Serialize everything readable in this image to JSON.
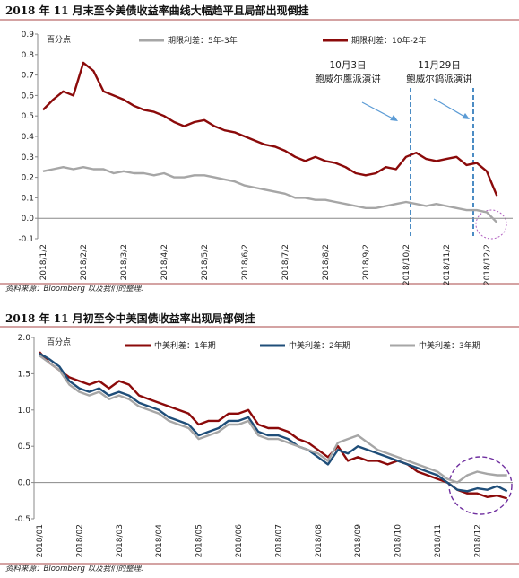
{
  "chart_data": [
    {
      "type": "line",
      "title": "2018 年 11 月末至今美债收益率曲线大幅趋平且局部出现倒挂",
      "y_unit": "百分点",
      "categories": [
        "2018/1/2",
        null,
        null,
        null,
        "2018/2/2",
        null,
        null,
        null,
        "2018/3/2",
        null,
        null,
        null,
        "2018/4/2",
        null,
        null,
        null,
        "2018/5/2",
        null,
        null,
        null,
        "2018/6/2",
        null,
        null,
        null,
        "2018/7/2",
        null,
        null,
        null,
        "2018/8/2",
        null,
        null,
        null,
        "2018/9/2",
        null,
        null,
        null,
        "2018/10/2",
        null,
        null,
        null,
        "2018/11/2",
        null,
        null,
        null,
        "2018/12/2",
        null
      ],
      "series": [
        {
          "name": "期限利差：5年-3年",
          "color": "#a6a6a6",
          "values": [
            0.23,
            0.24,
            0.25,
            0.24,
            0.25,
            0.24,
            0.24,
            0.22,
            0.23,
            0.22,
            0.22,
            0.21,
            0.22,
            0.2,
            0.2,
            0.21,
            0.21,
            0.2,
            0.19,
            0.18,
            0.16,
            0.15,
            0.14,
            0.13,
            0.12,
            0.1,
            0.1,
            0.09,
            0.09,
            0.08,
            0.07,
            0.06,
            0.05,
            0.05,
            0.06,
            0.07,
            0.08,
            0.07,
            0.06,
            0.07,
            0.06,
            0.05,
            0.04,
            0.04,
            0.03,
            -0.02
          ]
        },
        {
          "name": "期限利差：10年-2年",
          "color": "#8b0a0a",
          "values": [
            0.53,
            0.58,
            0.62,
            0.6,
            0.76,
            0.72,
            0.62,
            0.6,
            0.58,
            0.55,
            0.53,
            0.52,
            0.5,
            0.47,
            0.45,
            0.47,
            0.48,
            0.45,
            0.43,
            0.42,
            0.4,
            0.38,
            0.36,
            0.35,
            0.33,
            0.3,
            0.28,
            0.3,
            0.28,
            0.27,
            0.25,
            0.22,
            0.21,
            0.22,
            0.25,
            0.24,
            0.3,
            0.32,
            0.29,
            0.28,
            0.29,
            0.3,
            0.26,
            0.27,
            0.23,
            0.11
          ]
        }
      ],
      "ylim": [
        -0.1,
        0.9
      ],
      "yticks": [
        0.9,
        0.8,
        0.7,
        0.6,
        0.5,
        0.4,
        0.3,
        0.2,
        0.1,
        {
          "value": 0,
          "label": "0.0"
        },
        -0.1
      ],
      "annotations": [
        {
          "text": "10月3日"
        },
        {
          "text": "鲍威尔鹰派演讲"
        },
        {
          "text": "11月29日"
        },
        {
          "text": "鲍威尔鸽派演讲"
        }
      ],
      "source": "资料来源：Bloomberg 以及我们的整理."
    },
    {
      "type": "line",
      "title": "2018 年 11 月初至今中美国债收益率出现局部倒挂",
      "y_unit": "百分点",
      "categories": [
        "2018/01",
        null,
        null,
        null,
        "2018/02",
        null,
        null,
        null,
        "2018/03",
        null,
        null,
        null,
        "2018/04",
        null,
        null,
        null,
        "2018/05",
        null,
        null,
        null,
        "2018/06",
        null,
        null,
        null,
        "2018/07",
        null,
        null,
        null,
        "2018/08",
        null,
        null,
        null,
        "2018/09",
        null,
        null,
        null,
        "2018/10",
        null,
        null,
        null,
        "2018/11",
        null,
        null,
        null,
        "2018/12",
        null,
        null,
        null
      ],
      "series": [
        {
          "name": "中美利差：1年期",
          "color": "#8b0a0a",
          "values": [
            1.8,
            1.65,
            1.55,
            1.45,
            1.4,
            1.35,
            1.4,
            1.3,
            1.4,
            1.35,
            1.2,
            1.15,
            1.1,
            1.05,
            1.0,
            0.95,
            0.8,
            0.85,
            0.85,
            0.95,
            0.95,
            1.0,
            0.8,
            0.75,
            0.75,
            0.7,
            0.6,
            0.55,
            0.45,
            0.35,
            0.5,
            0.3,
            0.35,
            0.3,
            0.3,
            0.25,
            0.3,
            0.25,
            0.15,
            0.1,
            0.05,
            0.0,
            -0.1,
            -0.15,
            -0.15,
            -0.2,
            -0.18,
            -0.22
          ]
        },
        {
          "name": "中美利差：2年期",
          "color": "#1f4e79",
          "values": [
            1.78,
            1.7,
            1.6,
            1.4,
            1.3,
            1.25,
            1.3,
            1.2,
            1.25,
            1.2,
            1.1,
            1.05,
            1.0,
            0.9,
            0.85,
            0.8,
            0.65,
            0.7,
            0.75,
            0.85,
            0.85,
            0.9,
            0.7,
            0.65,
            0.65,
            0.6,
            0.5,
            0.45,
            0.35,
            0.25,
            0.45,
            0.4,
            0.5,
            0.45,
            0.4,
            0.35,
            0.3,
            0.25,
            0.2,
            0.15,
            0.1,
            0.0,
            -0.1,
            -0.12,
            -0.08,
            -0.1,
            -0.05,
            -0.12
          ]
        },
        {
          "name": "中美利差：3年期",
          "color": "#a6a6a6",
          "values": [
            1.75,
            1.65,
            1.55,
            1.35,
            1.25,
            1.2,
            1.25,
            1.15,
            1.2,
            1.15,
            1.05,
            1.0,
            0.95,
            0.85,
            0.8,
            0.75,
            0.6,
            0.65,
            0.7,
            0.8,
            0.8,
            0.85,
            0.65,
            0.6,
            0.6,
            0.55,
            0.5,
            0.45,
            0.4,
            0.3,
            0.55,
            0.6,
            0.65,
            0.55,
            0.45,
            0.4,
            0.35,
            0.3,
            0.25,
            0.2,
            0.15,
            0.05,
            0.0,
            0.1,
            0.15,
            0.12,
            0.1,
            0.1
          ]
        }
      ],
      "ylim": [
        -0.5,
        2.0
      ],
      "yticks": [
        {
          "value": 2,
          "label": "2.0"
        },
        1.5,
        {
          "value": 1,
          "label": "1.0"
        },
        0.5,
        {
          "value": 0,
          "label": "0.0"
        },
        -0.5
      ],
      "source": "资料来源：Bloomberg 以及我们的整理."
    }
  ]
}
